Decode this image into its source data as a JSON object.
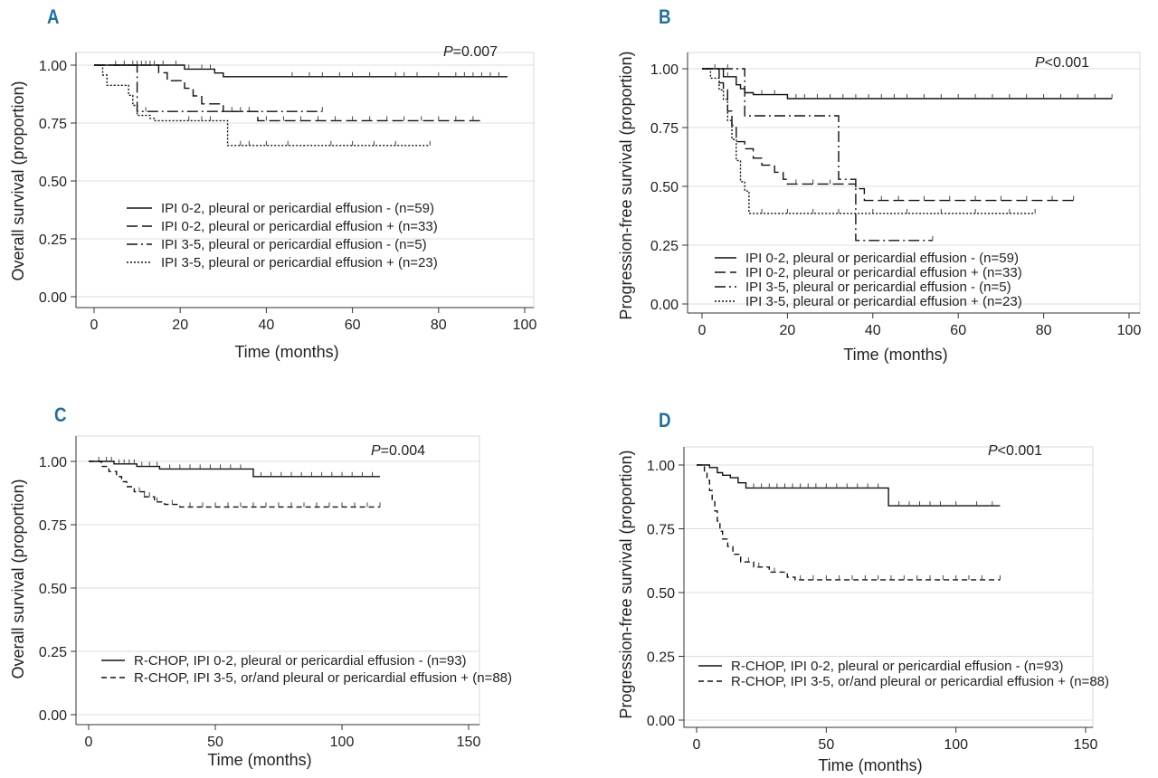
{
  "chart_data": [
    {
      "id": "A",
      "type": "line",
      "panel_label": "A",
      "p_value": {
        "prefix": "P",
        "text": "=0.007"
      },
      "xlabel": "Time (months)",
      "ylabel": "Overall survival (proportion)",
      "xlim": [
        0,
        100
      ],
      "ylim": [
        0,
        1
      ],
      "xticks": [
        0,
        20,
        40,
        60,
        80,
        100
      ],
      "xtick_labels": [
        "0",
        "20",
        "40",
        "60",
        "80",
        "100"
      ],
      "yticks": [
        0,
        0.25,
        0.5,
        0.75,
        1.0
      ],
      "ytick_labels": [
        "0.00",
        "0.25",
        "0.50",
        "0.75",
        "1.00"
      ],
      "series": [
        {
          "name": "IPI 0-2, pleural or pericardial effusion - (n=59)",
          "style": "solid",
          "steps": [
            [
              0,
              1.0
            ],
            [
              21,
              0.983
            ],
            [
              28,
              0.966
            ],
            [
              30,
              0.95
            ],
            [
              96,
              0.95
            ]
          ],
          "censor": [
            5,
            7,
            9,
            11,
            13,
            16,
            19,
            22,
            25,
            27,
            46,
            50,
            53,
            57,
            60,
            64,
            70,
            72,
            75,
            80,
            84,
            86,
            88,
            90,
            92,
            94
          ]
        },
        {
          "name": "IPI 0-2, pleural or pericardial effusion + (n=33)",
          "style": "longdash",
          "steps": [
            [
              0,
              1.0
            ],
            [
              15,
              0.967
            ],
            [
              17,
              0.933
            ],
            [
              21,
              0.9
            ],
            [
              23,
              0.867
            ],
            [
              25,
              0.833
            ],
            [
              30,
              0.8
            ],
            [
              38,
              0.76
            ],
            [
              90,
              0.76
            ]
          ],
          "censor": [
            10,
            12,
            14,
            32,
            34,
            36,
            40,
            44,
            48,
            52,
            56,
            60,
            64,
            68,
            72,
            76,
            80,
            84,
            88
          ]
        },
        {
          "name": "IPI 3-5, pleural or pericardial effusion - (n=5)",
          "style": "dashdot",
          "steps": [
            [
              0,
              1.0
            ],
            [
              10,
              0.8
            ],
            [
              53,
              0.8
            ]
          ],
          "censor": [
            12,
            53
          ]
        },
        {
          "name": "IPI 3-5, pleural or pericardial effusion + (n=23)",
          "style": "dotted",
          "steps": [
            [
              0,
              1.0
            ],
            [
              2,
              0.957
            ],
            [
              3,
              0.913
            ],
            [
              8,
              0.87
            ],
            [
              9,
              0.826
            ],
            [
              10,
              0.783
            ],
            [
              13,
              0.77
            ],
            [
              14,
              0.76
            ],
            [
              31,
              0.653
            ],
            [
              78,
              0.653
            ]
          ],
          "censor": [
            22,
            25,
            27,
            34,
            36,
            40,
            45,
            55,
            60,
            65,
            70,
            78
          ]
        }
      ]
    },
    {
      "id": "B",
      "type": "line",
      "panel_label": "B",
      "p_value": {
        "prefix": "P",
        "text": "<0.001"
      },
      "xlabel": "Time (months)",
      "ylabel": "Progression-free survival (proportion)",
      "xlim": [
        0,
        100
      ],
      "ylim": [
        0,
        1
      ],
      "xticks": [
        0,
        20,
        40,
        60,
        80,
        100
      ],
      "xtick_labels": [
        "0",
        "20",
        "40",
        "60",
        "80",
        "100"
      ],
      "yticks": [
        0,
        0.25,
        0.5,
        0.75,
        1.0
      ],
      "ytick_labels": [
        "0.00",
        "0.25",
        "0.50",
        "0.75",
        "1.00"
      ],
      "series": [
        {
          "name": "IPI 0-2, pleural or pericardial effusion - (n=59)",
          "style": "solid",
          "steps": [
            [
              0,
              1.0
            ],
            [
              5,
              0.966
            ],
            [
              8,
              0.932
            ],
            [
              9,
              0.915
            ],
            [
              10,
              0.898
            ],
            [
              12,
              0.89
            ],
            [
              20,
              0.873
            ],
            [
              96,
              0.873
            ]
          ],
          "censor": [
            3,
            6,
            14,
            17,
            22,
            24,
            27,
            30,
            33,
            36,
            39,
            42,
            45,
            48,
            52,
            56,
            60,
            64,
            68,
            72,
            76,
            80,
            84,
            88,
            92,
            96
          ]
        },
        {
          "name": "IPI 0-2, pleural or pericardial effusion + (n=33)",
          "style": "longdash",
          "steps": [
            [
              0,
              1.0
            ],
            [
              4,
              0.94
            ],
            [
              5,
              0.91
            ],
            [
              6,
              0.82
            ],
            [
              7,
              0.76
            ],
            [
              8,
              0.69
            ],
            [
              10,
              0.66
            ],
            [
              12,
              0.62
            ],
            [
              14,
              0.59
            ],
            [
              17,
              0.56
            ],
            [
              19,
              0.53
            ],
            [
              20,
              0.51
            ],
            [
              32,
              0.51
            ],
            [
              36,
              0.49
            ],
            [
              38,
              0.44
            ],
            [
              87,
              0.44
            ]
          ],
          "censor": [
            22,
            26,
            30,
            42,
            46,
            52,
            58,
            64,
            70,
            76,
            82,
            87
          ]
        },
        {
          "name": "IPI 3-5, pleural or pericardial effusion - (n=5)",
          "style": "dashdot",
          "steps": [
            [
              0,
              1.0
            ],
            [
              10,
              0.8
            ],
            [
              32,
              0.53
            ],
            [
              36,
              0.27
            ],
            [
              54,
              0.27
            ]
          ],
          "censor": [
            6,
            54
          ]
        },
        {
          "name": "IPI 3-5, pleural or pericardial effusion + (n=23)",
          "style": "dotted",
          "steps": [
            [
              0,
              1.0
            ],
            [
              2,
              0.96
            ],
            [
              4,
              0.91
            ],
            [
              5,
              0.87
            ],
            [
              6,
              0.78
            ],
            [
              7,
              0.7
            ],
            [
              8,
              0.61
            ],
            [
              9,
              0.52
            ],
            [
              10,
              0.48
            ],
            [
              11,
              0.385
            ],
            [
              78,
              0.385
            ]
          ],
          "censor": [
            14,
            20,
            26,
            32,
            40,
            48,
            56,
            64,
            72,
            78
          ]
        }
      ]
    },
    {
      "id": "C",
      "type": "line",
      "panel_label": "C",
      "p_value": {
        "prefix": "P",
        "text": "=0.004"
      },
      "xlabel": "Time (months)",
      "ylabel": "Overall survival (proportion)",
      "xlim": [
        0,
        150
      ],
      "ylim": [
        0,
        1
      ],
      "xticks": [
        0,
        50,
        100,
        150
      ],
      "xtick_labels": [
        "0",
        "50",
        "100",
        "150"
      ],
      "yticks": [
        0,
        0.25,
        0.5,
        0.75,
        1.0
      ],
      "ytick_labels": [
        "0.00",
        "0.25",
        "0.50",
        "0.75",
        "1.00"
      ],
      "series": [
        {
          "name": "R-CHOP, IPI 0-2, pleural or pericardial effusion - (n=93)",
          "style": "solid",
          "steps": [
            [
              0,
              1.0
            ],
            [
              10,
              0.99
            ],
            [
              19,
              0.98
            ],
            [
              28,
              0.97
            ],
            [
              65,
              0.94
            ],
            [
              115,
              0.94
            ]
          ],
          "censor": [
            4,
            7,
            9,
            12,
            14,
            16,
            18,
            21,
            24,
            27,
            32,
            36,
            40,
            44,
            48,
            52,
            56,
            60,
            68,
            72,
            76,
            80,
            84,
            88,
            92,
            96,
            100,
            104,
            108,
            112
          ]
        },
        {
          "name": "R-CHOP, IPI 3-5, or/and pleural or pericardial effusion + (n=88)",
          "style": "dashed",
          "steps": [
            [
              0,
              1.0
            ],
            [
              5,
              0.98
            ],
            [
              8,
              0.96
            ],
            [
              11,
              0.94
            ],
            [
              13,
              0.92
            ],
            [
              15,
              0.9
            ],
            [
              18,
              0.88
            ],
            [
              22,
              0.86
            ],
            [
              26,
              0.84
            ],
            [
              30,
              0.83
            ],
            [
              36,
              0.82
            ],
            [
              115,
              0.82
            ]
          ],
          "censor": [
            20,
            22,
            24,
            27,
            33,
            40,
            45,
            50,
            55,
            60,
            65,
            70,
            75,
            80,
            85,
            90,
            95,
            100,
            105,
            110,
            115
          ]
        }
      ]
    },
    {
      "id": "D",
      "type": "line",
      "panel_label": "D",
      "p_value": {
        "prefix": "P",
        "text": "<0.001"
      },
      "xlabel": "Time (months)",
      "ylabel": "Progression-free survival (proportion)",
      "xlim": [
        0,
        150
      ],
      "ylim": [
        0,
        1
      ],
      "xticks": [
        0,
        50,
        100,
        150
      ],
      "xtick_labels": [
        "0",
        "50",
        "100",
        "150"
      ],
      "yticks": [
        0,
        0.25,
        0.5,
        0.75,
        1.0
      ],
      "ytick_labels": [
        "0.00",
        "0.25",
        "0.50",
        "0.75",
        "1.00"
      ],
      "series": [
        {
          "name": "R-CHOP, IPI 0-2, pleural or pericardial effusion - (n=93)",
          "style": "solid",
          "steps": [
            [
              0,
              1.0
            ],
            [
              5,
              0.99
            ],
            [
              8,
              0.97
            ],
            [
              10,
              0.96
            ],
            [
              13,
              0.95
            ],
            [
              16,
              0.93
            ],
            [
              19,
              0.91
            ],
            [
              74,
              0.84
            ],
            [
              117,
              0.84
            ]
          ],
          "censor": [
            22,
            25,
            28,
            31,
            34,
            37,
            40,
            43,
            46,
            50,
            54,
            58,
            62,
            66,
            70,
            78,
            82,
            86,
            90,
            94,
            100,
            108,
            114
          ]
        },
        {
          "name": "R-CHOP, IPI 3-5, or/and pleural or pericardial effusion + (n=88)",
          "style": "dashed",
          "steps": [
            [
              0,
              1.0
            ],
            [
              3,
              0.97
            ],
            [
              4,
              0.94
            ],
            [
              5,
              0.9
            ],
            [
              6,
              0.86
            ],
            [
              7,
              0.82
            ],
            [
              8,
              0.78
            ],
            [
              9,
              0.74
            ],
            [
              10,
              0.71
            ],
            [
              12,
              0.68
            ],
            [
              14,
              0.65
            ],
            [
              17,
              0.62
            ],
            [
              22,
              0.6
            ],
            [
              28,
              0.58
            ],
            [
              35,
              0.56
            ],
            [
              38,
              0.55
            ],
            [
              117,
              0.55
            ]
          ],
          "censor": [
            20,
            24,
            30,
            40,
            45,
            50,
            55,
            60,
            65,
            70,
            75,
            80,
            85,
            90,
            95,
            100,
            105,
            110,
            117
          ]
        }
      ]
    }
  ]
}
